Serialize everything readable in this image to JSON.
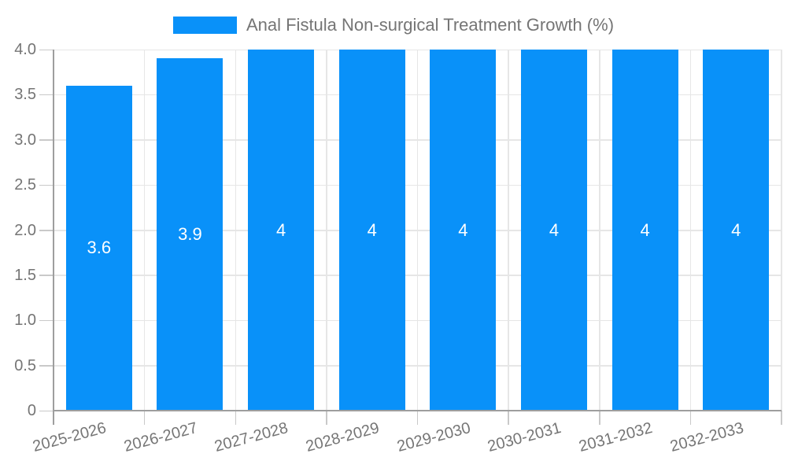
{
  "legend": {
    "label": "Anal Fistula Non-surgical Treatment Growth (%)"
  },
  "colors": {
    "bar": "#0991F9",
    "axis_label": "#757575",
    "grid": "#e6e6e6",
    "axis_line": "#9e9e9e",
    "tick": "#c9c9c9",
    "value_label": "#ffffff",
    "background": "#ffffff"
  },
  "chart_data": {
    "type": "bar",
    "title": "Anal Fistula Non-surgical Treatment Growth (%)",
    "categories": [
      "2025-2026",
      "2026-2027",
      "2027-2028",
      "2028-2029",
      "2029-2030",
      "2030-2031",
      "2031-2032",
      "2032-2033"
    ],
    "values": [
      3.6,
      3.9,
      4,
      4,
      4,
      4,
      4,
      4
    ],
    "value_labels": [
      "3.6",
      "3.9",
      "4",
      "4",
      "4",
      "4",
      "4",
      "4"
    ],
    "xlabel": "",
    "ylabel": "",
    "ylim": [
      0,
      4
    ],
    "ytick_interval": 0.5,
    "ytick_labels": [
      "0",
      "0.5",
      "1.0",
      "1.5",
      "2.0",
      "2.5",
      "3.0",
      "3.5",
      "4.0"
    ],
    "grid": true,
    "legend_position": "top",
    "value_labels_inside_bars": true
  }
}
